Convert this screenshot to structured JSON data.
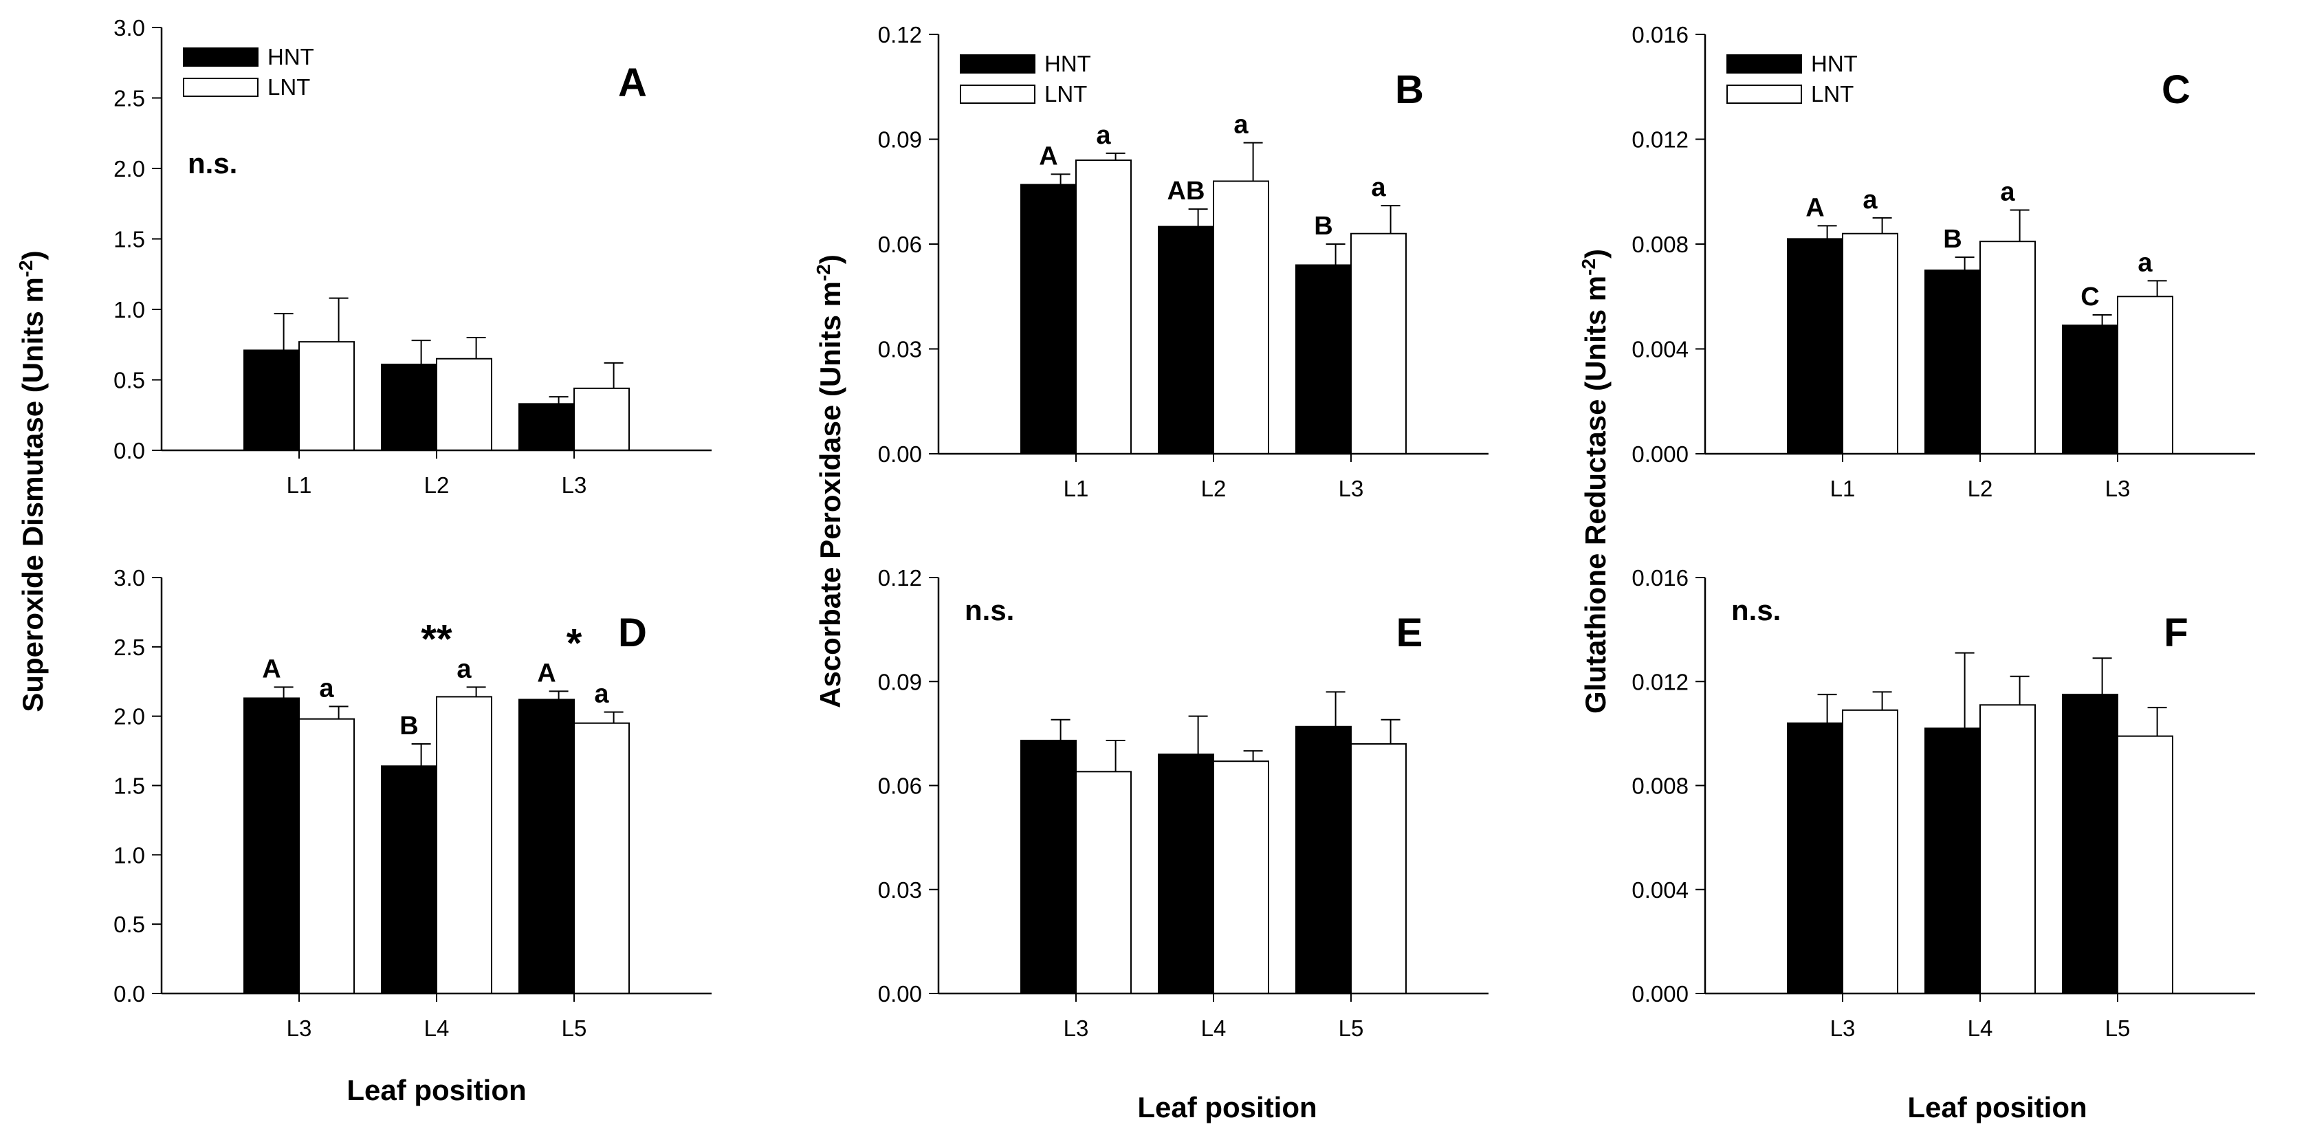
{
  "x_axis_label": "Leaf position",
  "y_axis_labels": {
    "sod": "Superoxide Dismutase (Units m",
    "apx": "Ascorbate Peroxidase (Units m",
    "gr": "Glutathione Reductase (Units m",
    "exponent": "-2",
    "close": ")"
  },
  "legend": {
    "hnt": "HNT",
    "lnt": "LNT"
  },
  "colors": {
    "hnt": "#000000",
    "lnt": "#ffffff",
    "axis": "#000000"
  },
  "chart_data": [
    {
      "id": "A",
      "type": "bar",
      "letter": "A",
      "ylabel_key": "sod",
      "legend": true,
      "categories": [
        "L1",
        "L2",
        "L3"
      ],
      "ylim": [
        0,
        3.0
      ],
      "yticks": [
        "0.0",
        "0.5",
        "1.0",
        "1.5",
        "2.0",
        "2.5",
        "3.0"
      ],
      "series": [
        {
          "name": "HNT",
          "values": [
            0.71,
            0.61,
            0.33
          ],
          "errors": [
            0.26,
            0.17,
            0.05
          ],
          "labels": [
            "",
            "",
            ""
          ]
        },
        {
          "name": "LNT",
          "values": [
            0.77,
            0.65,
            0.44
          ],
          "errors": [
            0.31,
            0.15,
            0.18
          ],
          "labels": [
            "",
            "",
            ""
          ]
        }
      ],
      "note": "n.s.",
      "stars": [
        "",
        "",
        ""
      ]
    },
    {
      "id": "B",
      "type": "bar",
      "letter": "B",
      "ylabel_key": "apx",
      "legend": true,
      "categories": [
        "L1",
        "L2",
        "L3"
      ],
      "ylim": [
        0,
        0.12
      ],
      "yticks": [
        "0.00",
        "0.03",
        "0.06",
        "0.09",
        "0.12"
      ],
      "series": [
        {
          "name": "HNT",
          "values": [
            0.077,
            0.065,
            0.054
          ],
          "errors": [
            0.003,
            0.005,
            0.006
          ],
          "labels": [
            "A",
            "AB",
            "B"
          ]
        },
        {
          "name": "LNT",
          "values": [
            0.084,
            0.078,
            0.063
          ],
          "errors": [
            0.002,
            0.011,
            0.008
          ],
          "labels": [
            "a",
            "a",
            "a"
          ]
        }
      ],
      "note": "",
      "stars": [
        "",
        "",
        ""
      ]
    },
    {
      "id": "C",
      "type": "bar",
      "letter": "C",
      "ylabel_key": "gr",
      "legend": true,
      "categories": [
        "L1",
        "L2",
        "L3"
      ],
      "ylim": [
        0,
        0.016
      ],
      "yticks": [
        "0.000",
        "0.004",
        "0.008",
        "0.012",
        "0.016"
      ],
      "series": [
        {
          "name": "HNT",
          "values": [
            0.0082,
            0.007,
            0.0049
          ],
          "errors": [
            0.0005,
            0.0005,
            0.0004
          ],
          "labels": [
            "A",
            "B",
            "C"
          ]
        },
        {
          "name": "LNT",
          "values": [
            0.0084,
            0.0081,
            0.006
          ],
          "errors": [
            0.0006,
            0.0012,
            0.0006
          ],
          "labels": [
            "a",
            "a",
            "a"
          ]
        }
      ],
      "note": "",
      "stars": [
        "",
        "",
        ""
      ]
    },
    {
      "id": "D",
      "type": "bar",
      "letter": "D",
      "ylabel_key": "sod",
      "legend": false,
      "categories": [
        "L3",
        "L4",
        "L5"
      ],
      "ylim": [
        0,
        3.0
      ],
      "yticks": [
        "0.0",
        "0.5",
        "1.0",
        "1.5",
        "2.0",
        "2.5",
        "3.0"
      ],
      "series": [
        {
          "name": "HNT",
          "values": [
            2.13,
            1.64,
            2.12
          ],
          "errors": [
            0.08,
            0.16,
            0.06
          ],
          "labels": [
            "A",
            "B",
            "A"
          ]
        },
        {
          "name": "LNT",
          "values": [
            1.98,
            2.14,
            1.95
          ],
          "errors": [
            0.09,
            0.07,
            0.08
          ],
          "labels": [
            "a",
            "a",
            "a"
          ]
        }
      ],
      "note": "",
      "stars": [
        "",
        "**",
        "*"
      ]
    },
    {
      "id": "E",
      "type": "bar",
      "letter": "E",
      "ylabel_key": "apx",
      "legend": false,
      "categories": [
        "L3",
        "L4",
        "L5"
      ],
      "ylim": [
        0,
        0.12
      ],
      "yticks": [
        "0.00",
        "0.03",
        "0.06",
        "0.09",
        "0.12"
      ],
      "series": [
        {
          "name": "HNT",
          "values": [
            0.073,
            0.069,
            0.077
          ],
          "errors": [
            0.006,
            0.011,
            0.01
          ],
          "labels": [
            "",
            "",
            ""
          ]
        },
        {
          "name": "LNT",
          "values": [
            0.064,
            0.067,
            0.072
          ],
          "errors": [
            0.009,
            0.003,
            0.007
          ],
          "labels": [
            "",
            "",
            ""
          ]
        }
      ],
      "note": "n.s.",
      "stars": [
        "",
        "",
        ""
      ]
    },
    {
      "id": "F",
      "type": "bar",
      "letter": "F",
      "ylabel_key": "gr",
      "legend": false,
      "categories": [
        "L3",
        "L4",
        "L5"
      ],
      "ylim": [
        0,
        0.016
      ],
      "yticks": [
        "0.000",
        "0.004",
        "0.008",
        "0.012",
        "0.016"
      ],
      "series": [
        {
          "name": "HNT",
          "values": [
            0.0104,
            0.0102,
            0.0115
          ],
          "errors": [
            0.0011,
            0.0029,
            0.0014
          ],
          "labels": [
            "",
            "",
            ""
          ]
        },
        {
          "name": "LNT",
          "values": [
            0.0109,
            0.0111,
            0.0099
          ],
          "errors": [
            0.0007,
            0.0011,
            0.0011
          ],
          "labels": [
            "",
            "",
            ""
          ]
        }
      ],
      "note": "n.s.",
      "stars": [
        "",
        "",
        ""
      ]
    }
  ]
}
